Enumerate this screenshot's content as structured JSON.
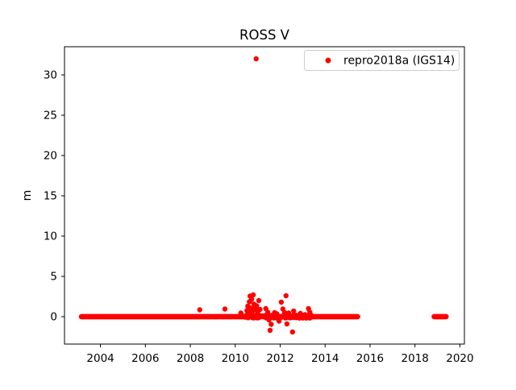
{
  "window": {
    "title": "ROSS V"
  },
  "chart_data": {
    "type": "scatter",
    "title": "ROSS V",
    "xlabel": "",
    "ylabel": "m",
    "xlim": [
      2002.4,
      2020.2
    ],
    "ylim": [
      -3.4,
      33.5
    ],
    "xticks": [
      2004,
      2006,
      2008,
      2010,
      2012,
      2014,
      2016,
      2018,
      2020
    ],
    "yticks": [
      0,
      5,
      10,
      15,
      20,
      25,
      30
    ],
    "grid": false,
    "background": "#ffffff",
    "spine_color": "#000000",
    "legend": {
      "position": "upper right",
      "border_color": "#cccccc",
      "entries": [
        {
          "label": "repro2018a (IGS14)",
          "color": "#ff0000",
          "marker": "dot"
        }
      ]
    },
    "series": [
      {
        "name": "repro2018a (IGS14)",
        "color": "#ff0000",
        "marker": "dot",
        "marker_radius_px": 3.2,
        "baseline_segments": [
          {
            "x_start": 2003.15,
            "x_end": 2015.45,
            "y": 0,
            "step": 0.02
          },
          {
            "x_start": 2018.85,
            "x_end": 2019.4,
            "y": 0,
            "step": 0.02
          }
        ],
        "noise_region": {
          "x_start": 2010.4,
          "x_end": 2013.4,
          "amplitude": 0.18
        },
        "points": [
          [
            2008.42,
            0.85
          ],
          [
            2009.54,
            0.95
          ],
          [
            2010.25,
            0.45
          ],
          [
            2010.52,
            0.75
          ],
          [
            2010.56,
            1.3
          ],
          [
            2010.6,
            0.55
          ],
          [
            2010.63,
            1.85
          ],
          [
            2010.66,
            2.55
          ],
          [
            2010.7,
            1.05
          ],
          [
            2010.73,
            2.15
          ],
          [
            2010.76,
            0.65
          ],
          [
            2010.8,
            2.7
          ],
          [
            2010.83,
            1.55
          ],
          [
            2010.87,
            1.15
          ],
          [
            2010.9,
            0.85
          ],
          [
            2010.93,
            32.0
          ],
          [
            2010.95,
            1.35
          ],
          [
            2011.0,
            0.6
          ],
          [
            2011.05,
            2.0
          ],
          [
            2011.1,
            0.9
          ],
          [
            2011.36,
            1.0
          ],
          [
            2011.45,
            0.55
          ],
          [
            2011.5,
            -0.4
          ],
          [
            2011.55,
            -1.7
          ],
          [
            2011.6,
            -0.95
          ],
          [
            2011.75,
            0.5
          ],
          [
            2011.85,
            0.35
          ],
          [
            2011.95,
            -0.55
          ],
          [
            2012.05,
            1.8
          ],
          [
            2012.12,
            0.95
          ],
          [
            2012.2,
            0.5
          ],
          [
            2012.26,
            2.6
          ],
          [
            2012.3,
            -0.9
          ],
          [
            2012.38,
            0.45
          ],
          [
            2012.55,
            -1.9
          ],
          [
            2012.6,
            0.7
          ],
          [
            2012.9,
            0.4
          ],
          [
            2013.1,
            0.25
          ],
          [
            2013.26,
            1.0
          ],
          [
            2013.32,
            0.55
          ]
        ]
      }
    ]
  }
}
